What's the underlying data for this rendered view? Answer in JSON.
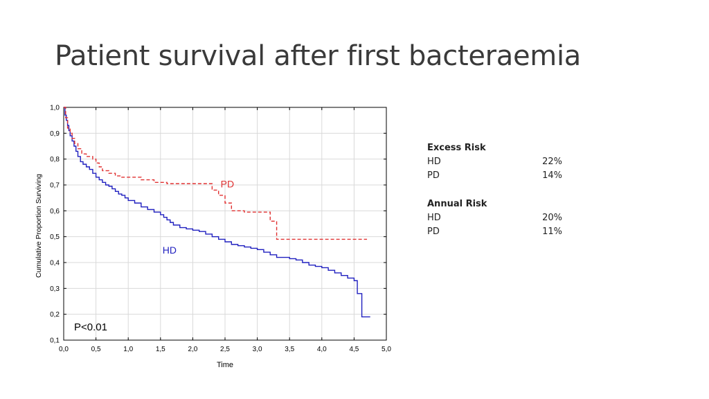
{
  "slide": {
    "title": "Patient survival after first bacteraemia"
  },
  "chart_data": {
    "type": "line",
    "xlabel": "Time",
    "ylabel": "Cumulative Proportion Surviving",
    "xlim": [
      0,
      5
    ],
    "ylim": [
      0.1,
      1.0
    ],
    "x_ticks": [
      "0,0",
      "0,5",
      "1,0",
      "1,5",
      "2,0",
      "2,5",
      "3,0",
      "3,5",
      "4,0",
      "4,5",
      "5,0"
    ],
    "y_ticks": [
      "0,1",
      "0,2",
      "0,3",
      "0,4",
      "0,5",
      "0,6",
      "0,7",
      "0,8",
      "0,9",
      "1,0"
    ],
    "grid": true,
    "annotation": "P<0.01",
    "series": [
      {
        "name": "HD",
        "color": "#1f1fbf",
        "style": "solid",
        "points": [
          [
            0.0,
            1.0
          ],
          [
            0.02,
            0.97
          ],
          [
            0.04,
            0.95
          ],
          [
            0.06,
            0.93
          ],
          [
            0.08,
            0.91
          ],
          [
            0.1,
            0.89
          ],
          [
            0.13,
            0.87
          ],
          [
            0.16,
            0.85
          ],
          [
            0.19,
            0.83
          ],
          [
            0.22,
            0.81
          ],
          [
            0.26,
            0.79
          ],
          [
            0.3,
            0.78
          ],
          [
            0.35,
            0.77
          ],
          [
            0.4,
            0.76
          ],
          [
            0.45,
            0.745
          ],
          [
            0.5,
            0.73
          ],
          [
            0.55,
            0.72
          ],
          [
            0.6,
            0.71
          ],
          [
            0.65,
            0.7
          ],
          [
            0.7,
            0.695
          ],
          [
            0.75,
            0.685
          ],
          [
            0.8,
            0.675
          ],
          [
            0.85,
            0.665
          ],
          [
            0.9,
            0.66
          ],
          [
            0.95,
            0.65
          ],
          [
            1.0,
            0.64
          ],
          [
            1.1,
            0.63
          ],
          [
            1.2,
            0.615
          ],
          [
            1.3,
            0.605
          ],
          [
            1.4,
            0.595
          ],
          [
            1.5,
            0.585
          ],
          [
            1.55,
            0.575
          ],
          [
            1.6,
            0.565
          ],
          [
            1.65,
            0.555
          ],
          [
            1.7,
            0.545
          ],
          [
            1.8,
            0.535
          ],
          [
            1.9,
            0.53
          ],
          [
            2.0,
            0.525
          ],
          [
            2.1,
            0.52
          ],
          [
            2.2,
            0.51
          ],
          [
            2.3,
            0.5
          ],
          [
            2.4,
            0.49
          ],
          [
            2.5,
            0.48
          ],
          [
            2.6,
            0.47
          ],
          [
            2.7,
            0.465
          ],
          [
            2.8,
            0.46
          ],
          [
            2.9,
            0.455
          ],
          [
            3.0,
            0.45
          ],
          [
            3.1,
            0.44
          ],
          [
            3.2,
            0.43
          ],
          [
            3.3,
            0.42
          ],
          [
            3.5,
            0.415
          ],
          [
            3.6,
            0.41
          ],
          [
            3.7,
            0.4
          ],
          [
            3.8,
            0.39
          ],
          [
            3.9,
            0.385
          ],
          [
            4.0,
            0.38
          ],
          [
            4.1,
            0.37
          ],
          [
            4.2,
            0.36
          ],
          [
            4.3,
            0.35
          ],
          [
            4.4,
            0.34
          ],
          [
            4.5,
            0.33
          ],
          [
            4.55,
            0.28
          ],
          [
            4.6,
            0.28
          ],
          [
            4.62,
            0.19
          ],
          [
            4.75,
            0.19
          ]
        ]
      },
      {
        "name": "PD",
        "color": "#e03030",
        "style": "dashed",
        "points": [
          [
            0.0,
            1.0
          ],
          [
            0.03,
            0.96
          ],
          [
            0.06,
            0.92
          ],
          [
            0.1,
            0.9
          ],
          [
            0.13,
            0.88
          ],
          [
            0.17,
            0.86
          ],
          [
            0.22,
            0.84
          ],
          [
            0.28,
            0.82
          ],
          [
            0.35,
            0.81
          ],
          [
            0.45,
            0.8
          ],
          [
            0.5,
            0.785
          ],
          [
            0.55,
            0.77
          ],
          [
            0.6,
            0.755
          ],
          [
            0.7,
            0.745
          ],
          [
            0.8,
            0.735
          ],
          [
            0.9,
            0.73
          ],
          [
            1.0,
            0.73
          ],
          [
            1.2,
            0.72
          ],
          [
            1.4,
            0.71
          ],
          [
            1.6,
            0.705
          ],
          [
            1.8,
            0.705
          ],
          [
            2.0,
            0.705
          ],
          [
            2.2,
            0.705
          ],
          [
            2.3,
            0.68
          ],
          [
            2.4,
            0.66
          ],
          [
            2.5,
            0.63
          ],
          [
            2.6,
            0.6
          ],
          [
            2.8,
            0.595
          ],
          [
            3.0,
            0.595
          ],
          [
            3.2,
            0.56
          ],
          [
            3.3,
            0.49
          ],
          [
            3.6,
            0.49
          ],
          [
            4.0,
            0.49
          ],
          [
            4.3,
            0.49
          ],
          [
            4.7,
            0.49
          ]
        ]
      }
    ]
  },
  "stats": {
    "excess_risk": {
      "heading": "Excess Risk",
      "hd_label": "HD",
      "hd_value": "22%",
      "pd_label": "PD",
      "pd_value": "14%"
    },
    "annual_risk": {
      "heading": "Annual Risk",
      "hd_label": "HD",
      "hd_value": "20%",
      "pd_label": "PD",
      "pd_value": "11%"
    }
  }
}
